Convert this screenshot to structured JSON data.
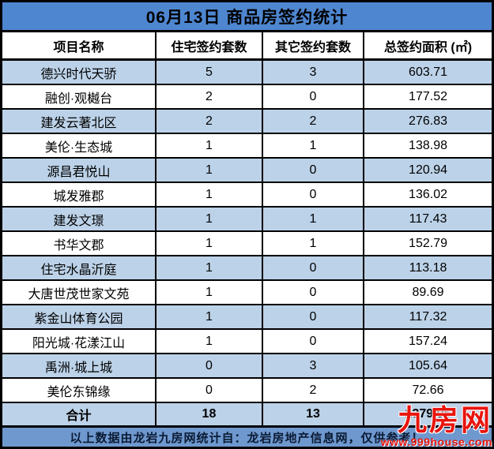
{
  "chart_data": {
    "type": "table",
    "title": "06月13日 商品房签约统计",
    "columns": [
      "项目名称",
      "住宅签约套数",
      "其它签约套数",
      "总签约面积 (㎡)"
    ],
    "rows": [
      [
        "德兴时代天骄",
        "5",
        "3",
        "603.71"
      ],
      [
        "融创·观樾台",
        "2",
        "0",
        "177.52"
      ],
      [
        "建发云著北区",
        "2",
        "2",
        "276.83"
      ],
      [
        "美伦·生态城",
        "1",
        "1",
        "138.98"
      ],
      [
        "源昌君悦山",
        "1",
        "0",
        "120.94"
      ],
      [
        "城发雅郡",
        "1",
        "0",
        "136.02"
      ],
      [
        "建发文璟",
        "1",
        "1",
        "117.43"
      ],
      [
        "书华文郡",
        "1",
        "1",
        "152.79"
      ],
      [
        "住宅水晶沂庭",
        "1",
        "0",
        "113.18"
      ],
      [
        "大唐世茂世家文苑",
        "1",
        "0",
        "89.69"
      ],
      [
        "紫金山体育公园",
        "1",
        "0",
        "117.32"
      ],
      [
        "阳光城·花漾江山",
        "1",
        "0",
        "157.24"
      ],
      [
        "禹洲·城上城",
        "0",
        "3",
        "105.64"
      ],
      [
        "美伦东锦缘",
        "0",
        "2",
        "72.66"
      ]
    ],
    "total_row": [
      "合计",
      "18",
      "13",
      "2379.95"
    ],
    "layout": "striped rows alternating light-blue/white, black grid borders, blue title bar"
  },
  "footer": {
    "note": "以上数据由龙岩九房网统计自：龙岩房地产信息网，仅供参考！"
  },
  "watermark": {
    "brand": "九房网",
    "site": "www.999house.com"
  },
  "colors": {
    "title_bg": "#4e86d0",
    "row_alt_bg": "#bcd2e8",
    "row_bg": "#ffffff",
    "footer_bg": "#6e98ce",
    "border": "#000000",
    "watermark_red": "#e8150d",
    "text": "#000000"
  }
}
